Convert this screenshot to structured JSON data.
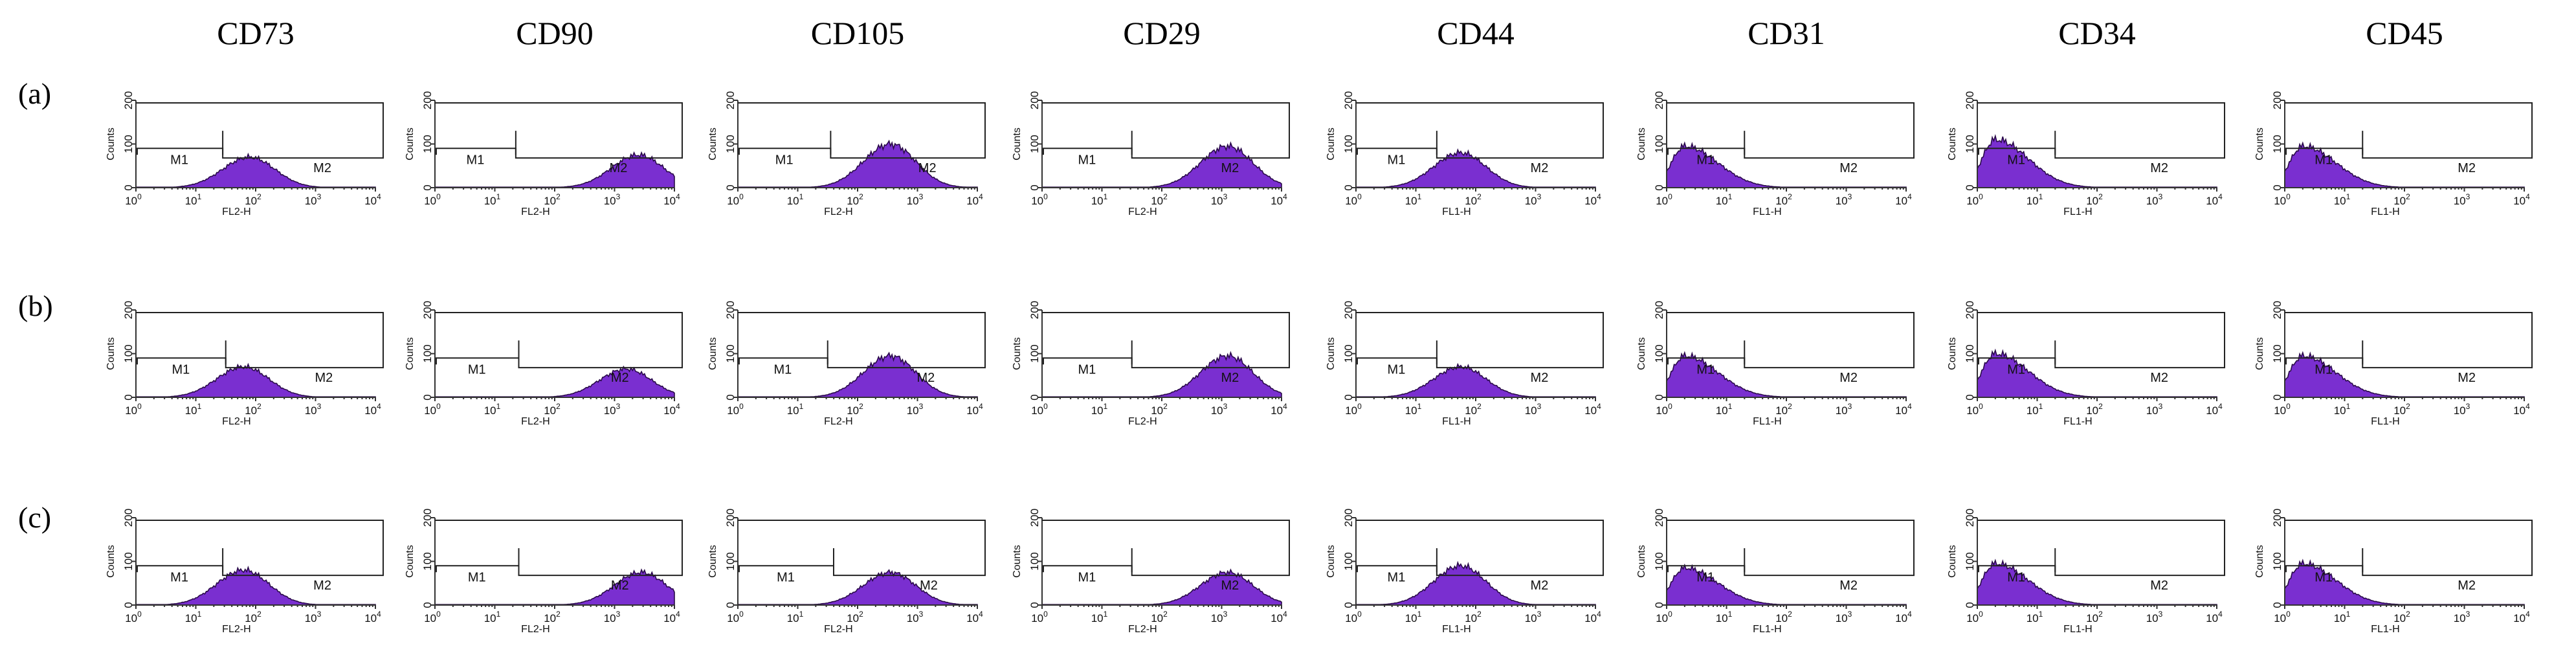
{
  "chart_data": {
    "type": "histogram-grid",
    "columns": [
      "CD73",
      "CD90",
      "CD105",
      "CD29",
      "CD44",
      "CD31",
      "CD34",
      "CD45"
    ],
    "rows": [
      "(a)",
      "(b)",
      "(c)"
    ],
    "y_label": "Counts",
    "y_ticks": [
      "0",
      "100",
      "200"
    ],
    "ylim": [
      0,
      200
    ],
    "x_ticks": [
      "0",
      "1",
      "2",
      "3",
      "4"
    ],
    "x_tick_base": "10",
    "xlim_log10": [
      0,
      4
    ],
    "gate_labels": [
      "M1",
      "M2"
    ],
    "panel_color": "#7a2fd0",
    "x_channels": [
      "FL2-H",
      "FL2-H",
      "FL2-H",
      "FL2-H",
      "FL1-H",
      "FL1-H",
      "FL1-H",
      "FL1-H"
    ],
    "gate_split_log10": [
      [
        1.45,
        1.35,
        1.55,
        1.5,
        1.35,
        1.3,
        1.3,
        1.3
      ],
      [
        1.5,
        1.4,
        1.5,
        1.5,
        1.35,
        1.3,
        1.3,
        1.3
      ],
      [
        1.45,
        1.4,
        1.6,
        1.5,
        1.35,
        1.3,
        1.3,
        1.3
      ]
    ],
    "histogram_peaks": [
      {
        "peak_log10": [
          1.9,
          3.4,
          2.55,
          3.1,
          1.75,
          0.3,
          0.3,
          0.3
        ],
        "peak_counts": [
          70,
          75,
          100,
          95,
          80,
          95,
          110,
          95
        ]
      },
      {
        "peak_log10": [
          1.8,
          3.2,
          2.55,
          3.1,
          1.75,
          0.3,
          0.3,
          0.3
        ],
        "peak_counts": [
          70,
          65,
          95,
          95,
          70,
          95,
          100,
          95
        ]
      },
      {
        "peak_log10": [
          1.8,
          3.45,
          2.55,
          3.1,
          1.75,
          0.3,
          0.3,
          0.3
        ],
        "peak_counts": [
          80,
          75,
          75,
          75,
          90,
          85,
          95,
          95
        ]
      }
    ]
  }
}
